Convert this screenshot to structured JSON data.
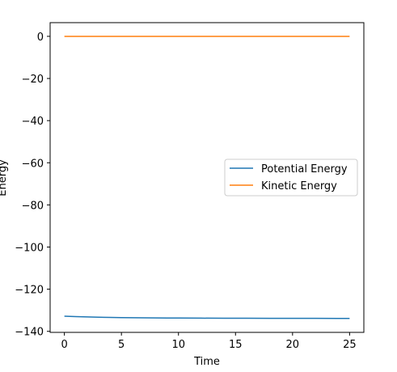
{
  "chart_data": {
    "type": "line",
    "title": "",
    "xlabel": "Time",
    "ylabel": "Energy",
    "xlim": [
      -1.25,
      26.25
    ],
    "ylim": [
      -140.5,
      6.5
    ],
    "xticks": [
      0,
      5,
      10,
      15,
      20,
      25
    ],
    "yticks": [
      0,
      -20,
      -40,
      -60,
      -80,
      -100,
      -120,
      -140
    ],
    "grid": false,
    "legend_position": "center-right",
    "series": [
      {
        "name": "Potential Energy",
        "color": "#1f77b4",
        "x": [
          0,
          1,
          2,
          3,
          4,
          5,
          6,
          7,
          8,
          9,
          10,
          12,
          14,
          16,
          18,
          20,
          22,
          24,
          25
        ],
        "y": [
          -132.8,
          -133.0,
          -133.15,
          -133.3,
          -133.4,
          -133.5,
          -133.55,
          -133.6,
          -133.65,
          -133.7,
          -133.7,
          -133.75,
          -133.8,
          -133.8,
          -133.85,
          -133.85,
          -133.85,
          -133.9,
          -133.9
        ]
      },
      {
        "name": "Kinetic Energy",
        "color": "#ff7f0e",
        "x": [
          0,
          5,
          10,
          15,
          20,
          25
        ],
        "y": [
          0,
          0,
          0,
          0,
          0,
          0
        ]
      }
    ]
  }
}
